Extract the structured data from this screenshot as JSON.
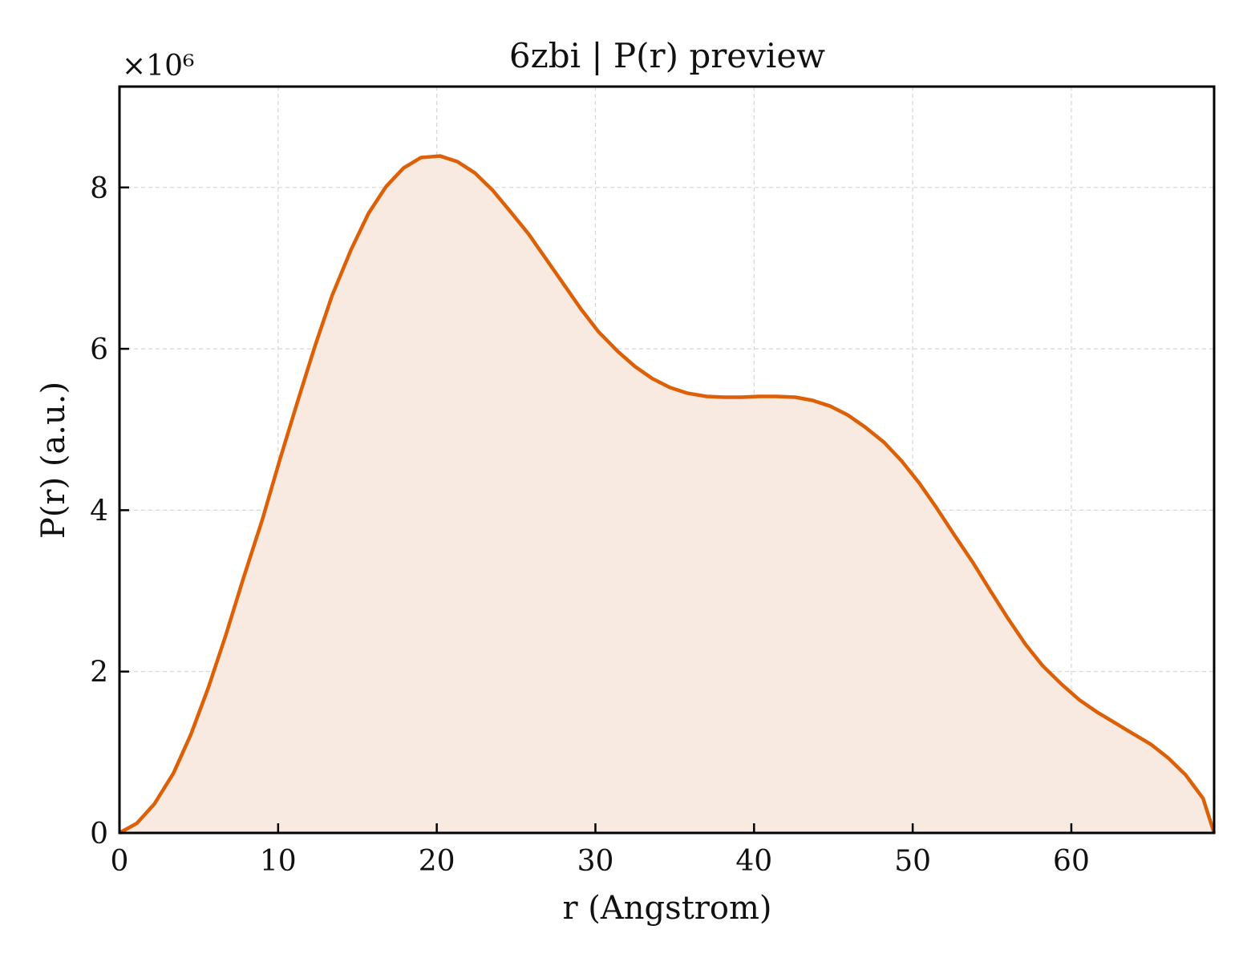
{
  "chart_data": {
    "type": "area",
    "title": "6zbi | P(r) preview",
    "xlabel": "r (Angstrom)",
    "ylabel": "P(r) (a.u.)",
    "y_multiplier_label": "×10⁶",
    "y_scale_factor": 1000000,
    "xlim": [
      0,
      69
    ],
    "ylim": [
      0,
      9250000
    ],
    "xticks": [
      0,
      10,
      20,
      30,
      40,
      50,
      60
    ],
    "yticks": [
      0,
      2000000,
      4000000,
      6000000,
      8000000
    ],
    "ytick_labels": [
      "0",
      "2",
      "4",
      "6",
      "8"
    ],
    "grid": true,
    "colors": {
      "line": "#dd5f06",
      "fill": "#f8eae0",
      "grid": "#d5d5d5",
      "axes": "#000000"
    },
    "series": [
      {
        "x": [
          0,
          1.1,
          2.2,
          3.4,
          4.5,
          5.6,
          6.7,
          7.8,
          9.0,
          10.1,
          11.2,
          12.3,
          13.4,
          14.6,
          15.7,
          16.8,
          17.9,
          19.0,
          20.2,
          21.3,
          22.4,
          23.5,
          24.6,
          25.8,
          26.9,
          28.0,
          29.1,
          30.2,
          31.4,
          32.5,
          33.6,
          34.7,
          35.8,
          37.0,
          38.1,
          39.2,
          40.3,
          41.4,
          42.6,
          43.7,
          44.8,
          45.9,
          47.0,
          48.2,
          49.3,
          50.4,
          51.5,
          52.6,
          53.8,
          54.9,
          56.0,
          57.1,
          58.2,
          59.4,
          60.5,
          61.6,
          62.7,
          63.8,
          65.0,
          66.1,
          67.2,
          68.3,
          69.0
        ],
        "y": [
          0,
          120000,
          360000,
          740000,
          1220000,
          1800000,
          2450000,
          3150000,
          3880000,
          4620000,
          5330000,
          6020000,
          6660000,
          7230000,
          7680000,
          8010000,
          8240000,
          8370000,
          8390000,
          8320000,
          8180000,
          7970000,
          7710000,
          7420000,
          7110000,
          6800000,
          6490000,
          6210000,
          5970000,
          5780000,
          5630000,
          5520000,
          5450000,
          5410000,
          5400000,
          5400000,
          5410000,
          5410000,
          5400000,
          5360000,
          5290000,
          5180000,
          5030000,
          4840000,
          4610000,
          4340000,
          4030000,
          3700000,
          3350000,
          3000000,
          2660000,
          2340000,
          2070000,
          1840000,
          1650000,
          1500000,
          1370000,
          1240000,
          1100000,
          930000,
          720000,
          430000,
          0
        ]
      }
    ]
  }
}
